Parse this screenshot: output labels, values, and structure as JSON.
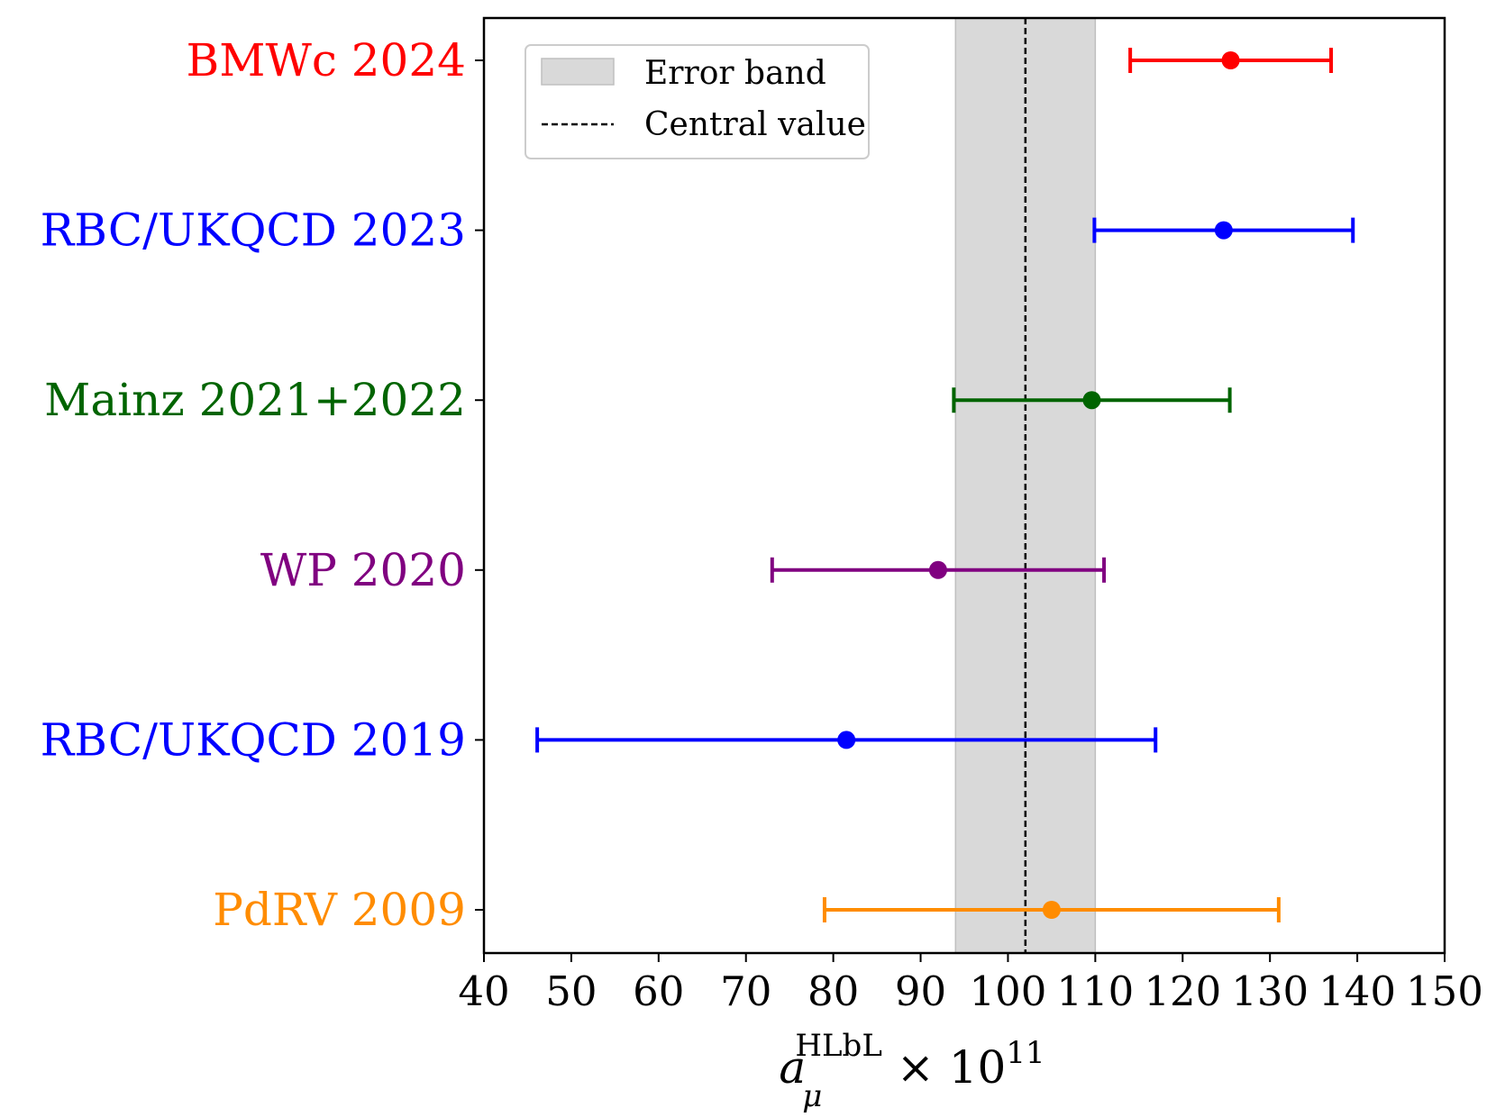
{
  "chart_data": {
    "type": "errorbar",
    "title": "",
    "xlabel": {
      "base": "a",
      "subscript": "μ",
      "superscript": "HLbL",
      "suffix": "× 10",
      "suffix_exponent": "11"
    },
    "xlim": [
      40,
      150
    ],
    "xticks": [
      "40",
      "50",
      "60",
      "70",
      "80",
      "90",
      "100",
      "110",
      "120",
      "130",
      "140",
      "150"
    ],
    "band": {
      "label": "Error band",
      "low": 94,
      "high": 110,
      "color": "#d9d9d9"
    },
    "central": {
      "label": "Central value",
      "value": 102,
      "color": "#000000"
    },
    "legend_position": "top-left",
    "points": [
      {
        "label": "BMWc 2024",
        "value": 125.5,
        "low": 114,
        "high": 137,
        "color": "#ff0000"
      },
      {
        "label": "RBC/UKQCD 2023",
        "value": 124.7,
        "low": 109.9,
        "high": 139.5,
        "color": "#0000ff"
      },
      {
        "label": "Mainz 2021+2022",
        "value": 109.6,
        "low": 93.8,
        "high": 125.4,
        "color": "#006400"
      },
      {
        "label": "WP 2020",
        "value": 92,
        "low": 73,
        "high": 111,
        "color": "#800080"
      },
      {
        "label": "RBC/UKQCD 2019",
        "value": 81.5,
        "low": 46.1,
        "high": 116.9,
        "color": "#0000ff"
      },
      {
        "label": "PdRV 2009",
        "value": 105,
        "low": 79,
        "high": 131,
        "color": "#ff8c00"
      }
    ]
  }
}
